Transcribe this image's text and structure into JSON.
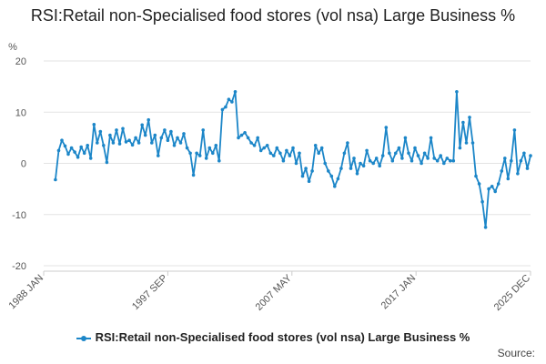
{
  "chart_data": {
    "type": "line",
    "title": "RSI:Retail non-Specialised food stores (vol nsa) Large Business %",
    "ylabel": "%",
    "xlabel": "",
    "ylim": [
      -20,
      20
    ],
    "yticks": [
      20,
      10,
      0,
      -10,
      -20
    ],
    "xlim": [
      "1988-01",
      "2025-12"
    ],
    "xticks": [
      {
        "label": "1988 JAN",
        "date": "1988-01"
      },
      {
        "label": "1997 SEP",
        "date": "1997-09"
      },
      {
        "label": "2007 MAY",
        "date": "2007-05"
      },
      {
        "label": "2017 JAN",
        "date": "2017-01"
      },
      {
        "label": "2025 DEC",
        "date": "2025-12"
      }
    ],
    "grid": true,
    "legend_position": "bottom",
    "series": [
      {
        "name": "RSI:Retail non-Specialised food stores (vol nsa) Large Business %",
        "color": "#1c86c8",
        "points": [
          [
            "1988-12",
            -3.2
          ],
          [
            "1989-03",
            2.5
          ],
          [
            "1989-06",
            4.5
          ],
          [
            "1989-09",
            3.4
          ],
          [
            "1989-12",
            1.8
          ],
          [
            "1990-03",
            3.0
          ],
          [
            "1990-06",
            2.2
          ],
          [
            "1990-09",
            1.2
          ],
          [
            "1990-12",
            3.2
          ],
          [
            "1991-03",
            2.0
          ],
          [
            "1991-06",
            3.5
          ],
          [
            "1991-09",
            1.0
          ],
          [
            "1991-12",
            7.6
          ],
          [
            "1992-03",
            4.0
          ],
          [
            "1992-06",
            6.2
          ],
          [
            "1992-09",
            3.5
          ],
          [
            "1992-12",
            0.2
          ],
          [
            "1993-03",
            5.5
          ],
          [
            "1993-06",
            4.0
          ],
          [
            "1993-09",
            6.5
          ],
          [
            "1993-12",
            3.8
          ],
          [
            "1994-03",
            6.8
          ],
          [
            "1994-06",
            4.2
          ],
          [
            "1994-09",
            4.5
          ],
          [
            "1994-12",
            3.6
          ],
          [
            "1995-03",
            5.0
          ],
          [
            "1995-06",
            4.0
          ],
          [
            "1995-09",
            7.5
          ],
          [
            "1995-12",
            5.5
          ],
          [
            "1996-03",
            8.5
          ],
          [
            "1996-06",
            4.0
          ],
          [
            "1996-09",
            5.5
          ],
          [
            "1996-12",
            1.5
          ],
          [
            "1997-03",
            5.0
          ],
          [
            "1997-06",
            6.5
          ],
          [
            "1997-09",
            4.5
          ],
          [
            "1997-12",
            6.2
          ],
          [
            "1998-03",
            3.5
          ],
          [
            "1998-06",
            5.0
          ],
          [
            "1998-09",
            4.0
          ],
          [
            "1998-12",
            5.8
          ],
          [
            "1999-03",
            3.0
          ],
          [
            "1999-06",
            2.0
          ],
          [
            "1999-09",
            -2.3
          ],
          [
            "1999-12",
            2.0
          ],
          [
            "2000-03",
            1.5
          ],
          [
            "2000-06",
            6.5
          ],
          [
            "2000-09",
            1.0
          ],
          [
            "2000-12",
            3.0
          ],
          [
            "2001-03",
            2.0
          ],
          [
            "2001-06",
            3.5
          ],
          [
            "2001-09",
            0.5
          ],
          [
            "2001-12",
            10.5
          ],
          [
            "2002-03",
            11.0
          ],
          [
            "2002-06",
            12.5
          ],
          [
            "2002-09",
            12.0
          ],
          [
            "2002-12",
            14.0
          ],
          [
            "2003-03",
            5.0
          ],
          [
            "2003-06",
            5.5
          ],
          [
            "2003-09",
            6.0
          ],
          [
            "2003-12",
            5.0
          ],
          [
            "2004-03",
            4.0
          ],
          [
            "2004-06",
            3.5
          ],
          [
            "2004-09",
            5.0
          ],
          [
            "2004-12",
            2.5
          ],
          [
            "2005-03",
            3.0
          ],
          [
            "2005-06",
            3.5
          ],
          [
            "2005-09",
            2.0
          ],
          [
            "2005-12",
            1.5
          ],
          [
            "2006-03",
            3.0
          ],
          [
            "2006-06",
            2.0
          ],
          [
            "2006-09",
            0.5
          ],
          [
            "2006-12",
            2.5
          ],
          [
            "2007-03",
            1.5
          ],
          [
            "2007-06",
            3.0
          ],
          [
            "2007-09",
            0.0
          ],
          [
            "2007-12",
            2.0
          ],
          [
            "2008-03",
            -2.5
          ],
          [
            "2008-06",
            -1.0
          ],
          [
            "2008-09",
            -3.5
          ],
          [
            "2008-12",
            -1.5
          ],
          [
            "2009-03",
            3.5
          ],
          [
            "2009-06",
            2.0
          ],
          [
            "2009-09",
            3.0
          ],
          [
            "2009-12",
            0.0
          ],
          [
            "2010-03",
            -1.5
          ],
          [
            "2010-06",
            -2.5
          ],
          [
            "2010-09",
            -4.5
          ],
          [
            "2010-12",
            -3.0
          ],
          [
            "2011-03",
            -1.0
          ],
          [
            "2011-06",
            2.0
          ],
          [
            "2011-09",
            4.0
          ],
          [
            "2011-12",
            -1.0
          ],
          [
            "2012-03",
            1.0
          ],
          [
            "2012-06",
            -2.0
          ],
          [
            "2012-09",
            0.0
          ],
          [
            "2012-12",
            -0.5
          ],
          [
            "2013-03",
            2.5
          ],
          [
            "2013-06",
            0.5
          ],
          [
            "2013-09",
            0.0
          ],
          [
            "2013-12",
            1.0
          ],
          [
            "2014-03",
            -0.5
          ],
          [
            "2014-06",
            1.5
          ],
          [
            "2014-09",
            7.0
          ],
          [
            "2014-12",
            2.0
          ],
          [
            "2015-03",
            0.5
          ],
          [
            "2015-06",
            2.0
          ],
          [
            "2015-09",
            3.0
          ],
          [
            "2015-12",
            1.0
          ],
          [
            "2016-03",
            5.0
          ],
          [
            "2016-06",
            2.0
          ],
          [
            "2016-09",
            0.5
          ],
          [
            "2016-12",
            3.0
          ],
          [
            "2017-03",
            1.5
          ],
          [
            "2017-06",
            0.0
          ],
          [
            "2017-09",
            2.0
          ],
          [
            "2017-12",
            1.0
          ],
          [
            "2018-03",
            5.0
          ],
          [
            "2018-06",
            1.0
          ],
          [
            "2018-09",
            0.5
          ],
          [
            "2018-12",
            1.5
          ],
          [
            "2019-03",
            0.0
          ],
          [
            "2019-06",
            1.0
          ],
          [
            "2019-09",
            0.5
          ],
          [
            "2019-12",
            0.5
          ],
          [
            "2020-03",
            14.0
          ],
          [
            "2020-06",
            3.0
          ],
          [
            "2020-09",
            8.0
          ],
          [
            "2020-12",
            4.0
          ],
          [
            "2021-03",
            9.0
          ],
          [
            "2021-06",
            4.0
          ],
          [
            "2021-09",
            -2.5
          ],
          [
            "2021-12",
            -4.0
          ],
          [
            "2022-03",
            -7.5
          ],
          [
            "2022-06",
            -12.5
          ],
          [
            "2022-09",
            -5.0
          ],
          [
            "2022-12",
            -4.5
          ],
          [
            "2023-03",
            -5.5
          ],
          [
            "2023-06",
            -4.0
          ],
          [
            "2023-09",
            -1.5
          ],
          [
            "2023-12",
            1.0
          ],
          [
            "2024-03",
            -3.0
          ],
          [
            "2024-06",
            0.5
          ],
          [
            "2024-09",
            6.5
          ],
          [
            "2024-12",
            -2.0
          ],
          [
            "2025-03",
            0.5
          ],
          [
            "2025-06",
            2.0
          ],
          [
            "2025-09",
            -1.0
          ],
          [
            "2025-12",
            1.5
          ]
        ]
      }
    ]
  },
  "legend": {
    "label": "RSI:Retail non-Specialised food stores (vol nsa) Large Business %"
  },
  "source_label": "Source:"
}
